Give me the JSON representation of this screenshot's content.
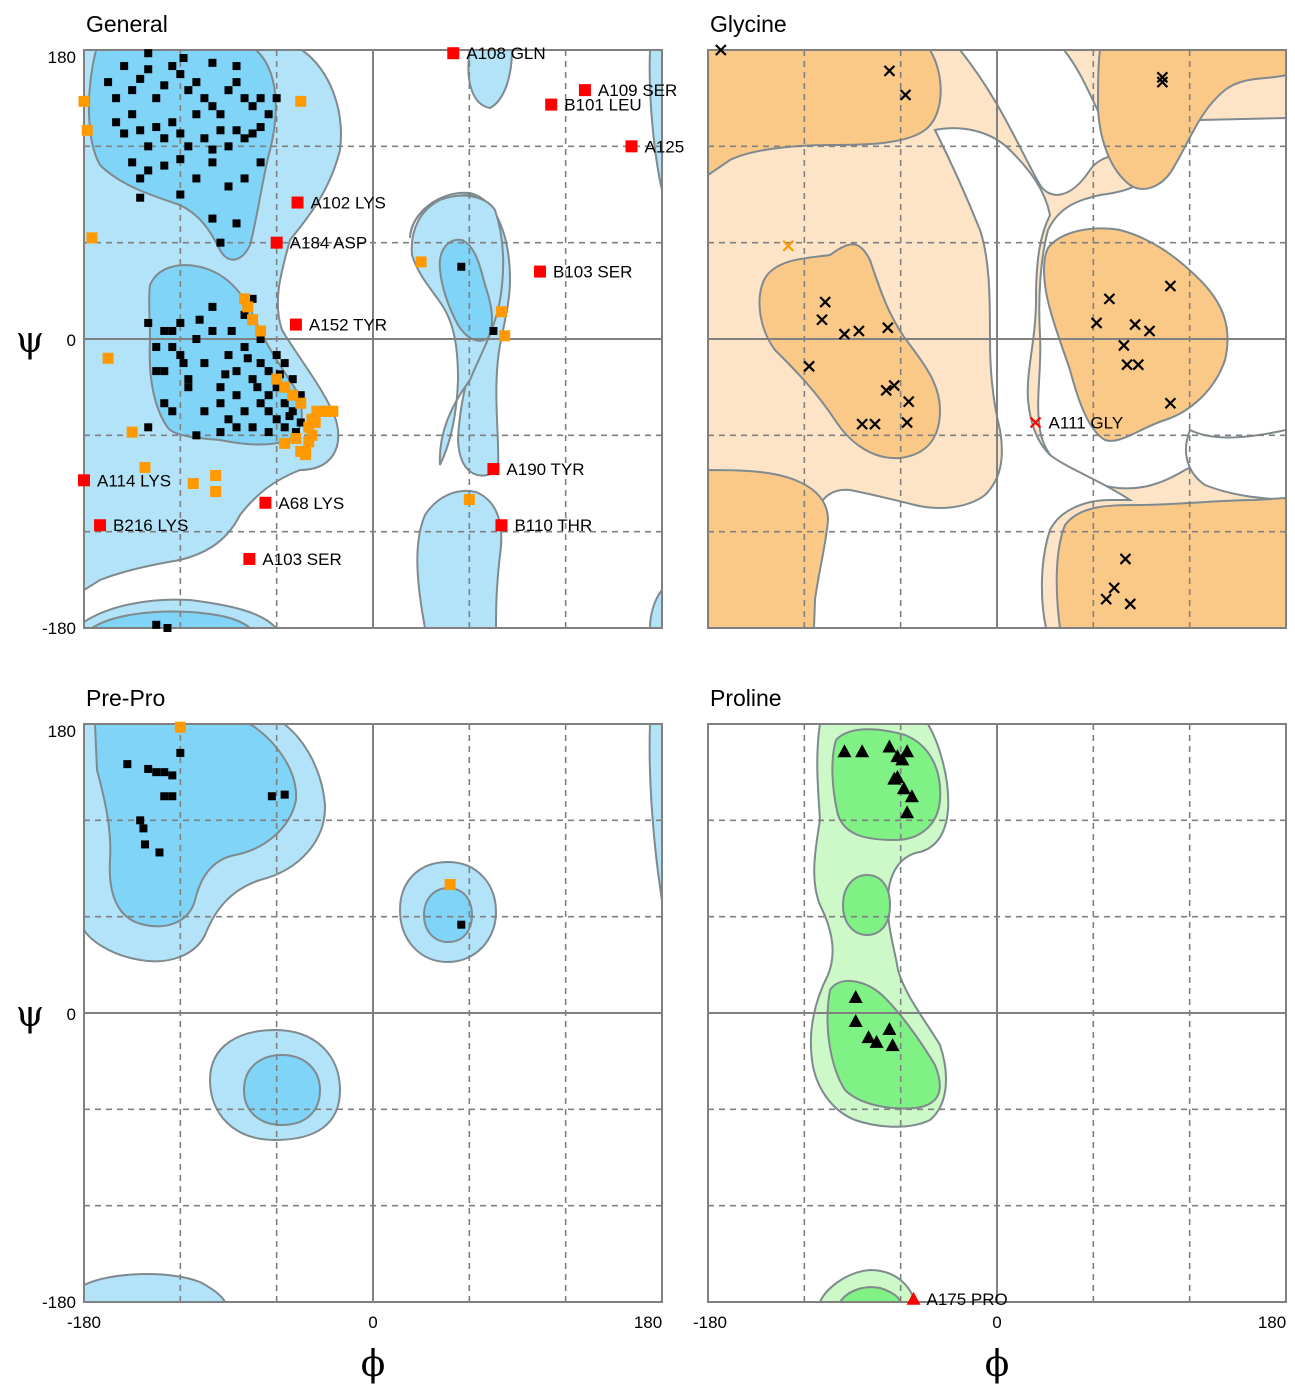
{
  "colors": {
    "general_outer": "#b3e3f8",
    "general_inner": "#7fd4f8",
    "glycine_outer": "#fde4c6",
    "glycine_inner": "#fbc987",
    "proline_outer": "#cdf8c8",
    "proline_inner": "#80f184",
    "contour_stroke": "#7f8a8f",
    "grid": "#808080",
    "point_favoured": "#000000",
    "point_allowed": "#ff9900",
    "point_outlier": "#ff0000"
  },
  "axes": {
    "x_symbol": "ϕ",
    "y_symbol": "ψ",
    "range": [
      -180,
      180
    ],
    "tick_labels": [
      "-180",
      "0",
      "180"
    ],
    "y_tick_labels": [
      "180",
      "0",
      "-180"
    ],
    "dashed_grid": [
      -120,
      -60,
      60,
      120
    ],
    "solid_grid": [
      0
    ]
  },
  "chart_data": [
    {
      "type": "scatter",
      "title": "General",
      "marker": "square",
      "favoured_points": [
        [
          -165,
          160
        ],
        [
          -160,
          150
        ],
        [
          -155,
          170
        ],
        [
          -150,
          155
        ],
        [
          -145,
          162
        ],
        [
          -140,
          168
        ],
        [
          -135,
          150
        ],
        [
          -130,
          158
        ],
        [
          -125,
          170
        ],
        [
          -120,
          165
        ],
        [
          -115,
          155
        ],
        [
          -110,
          160
        ],
        [
          -105,
          150
        ],
        [
          -100,
          145
        ],
        [
          -95,
          140
        ],
        [
          -90,
          155
        ],
        [
          -85,
          160
        ],
        [
          -80,
          150
        ],
        [
          -75,
          145
        ],
        [
          -70,
          150
        ],
        [
          -160,
          135
        ],
        [
          -155,
          128
        ],
        [
          -150,
          140
        ],
        [
          -145,
          130
        ],
        [
          -140,
          120
        ],
        [
          -135,
          132
        ],
        [
          -130,
          125
        ],
        [
          -125,
          135
        ],
        [
          -120,
          128
        ],
        [
          -115,
          120
        ],
        [
          -110,
          140
        ],
        [
          -105,
          125
        ],
        [
          -100,
          118
        ],
        [
          -95,
          130
        ],
        [
          -90,
          120
        ],
        [
          -85,
          130
        ],
        [
          -80,
          125
        ],
        [
          -75,
          128
        ],
        [
          -70,
          132
        ],
        [
          -65,
          140
        ],
        [
          -150,
          110
        ],
        [
          -145,
          100
        ],
        [
          -140,
          105
        ],
        [
          -130,
          108
        ],
        [
          -120,
          112
        ],
        [
          -110,
          100
        ],
        [
          -100,
          110
        ],
        [
          -90,
          95
        ],
        [
          -80,
          100
        ],
        [
          -70,
          110
        ],
        [
          -140,
          178
        ],
        [
          -118,
          175
        ],
        [
          -100,
          172
        ],
        [
          -85,
          170
        ],
        [
          -145,
          88
        ],
        [
          -120,
          90
        ],
        [
          -100,
          75
        ],
        [
          -85,
          72
        ],
        [
          -95,
          60
        ],
        [
          -60,
          150
        ],
        [
          -140,
          10
        ],
        [
          -135,
          -5
        ],
        [
          -130,
          -20
        ],
        [
          -125,
          5
        ],
        [
          -120,
          -10
        ],
        [
          -115,
          -25
        ],
        [
          -110,
          0
        ],
        [
          -105,
          -15
        ],
        [
          -100,
          5
        ],
        [
          -95,
          -30
        ],
        [
          -90,
          -10
        ],
        [
          -85,
          -20
        ],
        [
          -80,
          -5
        ],
        [
          -75,
          -25
        ],
        [
          -70,
          -15
        ],
        [
          -65,
          -35
        ],
        [
          -60,
          -30
        ],
        [
          -55,
          -40
        ],
        [
          -50,
          -25
        ],
        [
          -45,
          -35
        ],
        [
          -100,
          20
        ],
        [
          -95,
          -40
        ],
        [
          -90,
          -50
        ],
        [
          -85,
          -35
        ],
        [
          -80,
          -45
        ],
        [
          -75,
          -55
        ],
        [
          -70,
          -40
        ],
        [
          -65,
          -45
        ],
        [
          -60,
          -50
        ],
        [
          -55,
          -55
        ],
        [
          -120,
          10
        ],
        [
          -115,
          -30
        ],
        [
          -105,
          -45
        ],
        [
          -80,
          15
        ],
        [
          -75,
          25
        ],
        [
          -70,
          0
        ],
        [
          -65,
          -20
        ],
        [
          -60,
          -10
        ],
        [
          -55,
          -15
        ],
        [
          -50,
          -45
        ],
        [
          -135,
          -20
        ],
        [
          -130,
          -40
        ],
        [
          -125,
          -45
        ],
        [
          -110,
          -60
        ],
        [
          -95,
          -58
        ],
        [
          -85,
          -55
        ],
        [
          -65,
          -58
        ],
        [
          -52,
          -48
        ],
        [
          -48,
          -58
        ],
        [
          -45,
          -52
        ],
        [
          -140,
          -55
        ],
        [
          -130,
          5
        ],
        [
          -125,
          -5
        ],
        [
          -118,
          -15
        ],
        [
          -108,
          12
        ],
        [
          -92,
          -22
        ],
        [
          -88,
          5
        ],
        [
          -78,
          -12
        ],
        [
          -72,
          -30
        ],
        [
          -58,
          -22
        ],
        [
          -135,
          -178
        ],
        [
          -128,
          -180
        ],
        [
          55,
          45
        ],
        [
          75,
          5
        ]
      ],
      "allowed_points": [
        [
          -180,
          148
        ],
        [
          -178,
          130
        ],
        [
          -175,
          63
        ],
        [
          -80,
          25
        ],
        [
          -78,
          20
        ],
        [
          -75,
          12
        ],
        [
          -70,
          5
        ],
        [
          -165,
          -12
        ],
        [
          -150,
          -58
        ],
        [
          -142,
          -80
        ],
        [
          -112,
          -90
        ],
        [
          -98,
          -85
        ],
        [
          -98,
          -95
        ],
        [
          -48,
          -62
        ],
        [
          -55,
          -65
        ],
        [
          -42,
          -72
        ],
        [
          -40,
          -55
        ],
        [
          -38,
          -50
        ],
        [
          -35,
          -45
        ],
        [
          -30,
          -45
        ],
        [
          -28,
          -45
        ],
        [
          -45,
          -70
        ],
        [
          -42,
          -70
        ],
        [
          -40,
          -64
        ],
        [
          -38,
          -60
        ],
        [
          -36,
          -52
        ],
        [
          -60,
          -25
        ],
        [
          -55,
          -30
        ],
        [
          -50,
          -35
        ],
        [
          -45,
          -40
        ],
        [
          -28,
          -45
        ],
        [
          -45,
          148
        ],
        [
          -25,
          -45
        ],
        [
          30,
          48
        ],
        [
          80,
          17
        ],
        [
          82,
          2
        ],
        [
          60,
          -100
        ]
      ],
      "outliers": [
        {
          "label": "A108  GLN",
          "phi": 50,
          "psi": 178
        },
        {
          "label": "A109  SER",
          "phi": 132,
          "psi": 155
        },
        {
          "label": "B101  LEU",
          "phi": 111,
          "psi": 146
        },
        {
          "label": "A125",
          "phi": 161,
          "psi": 120
        },
        {
          "label": "A102  LYS",
          "phi": -47,
          "psi": 85
        },
        {
          "label": "A184  ASP",
          "phi": -60,
          "psi": 60
        },
        {
          "label": "B103  SER",
          "phi": 104,
          "psi": 42
        },
        {
          "label": "A152  TYR",
          "phi": -48,
          "psi": 9
        },
        {
          "label": "A190  TYR",
          "phi": 75,
          "psi": -81
        },
        {
          "label": "A114  LYS",
          "phi": -180,
          "psi": -88
        },
        {
          "label": "A68  LYS",
          "phi": -67,
          "psi": -102
        },
        {
          "label": "B216  LYS",
          "phi": -170,
          "psi": -116
        },
        {
          "label": "B110  THR",
          "phi": 80,
          "psi": -116
        },
        {
          "label": "A103  SER",
          "phi": -77,
          "psi": -137
        }
      ]
    },
    {
      "type": "scatter",
      "title": "Glycine",
      "marker": "cross",
      "favoured_points": [
        [
          -172,
          180
        ],
        [
          -67,
          167
        ],
        [
          -57,
          152
        ],
        [
          103,
          163
        ],
        [
          103,
          160
        ],
        [
          -107,
          23
        ],
        [
          -109,
          12
        ],
        [
          -95,
          3
        ],
        [
          -86,
          5
        ],
        [
          -68,
          7
        ],
        [
          -117,
          -17
        ],
        [
          -69,
          -32
        ],
        [
          -64,
          -29
        ],
        [
          -55,
          -39
        ],
        [
          -84,
          -53
        ],
        [
          -76,
          -53
        ],
        [
          -56,
          -52
        ],
        [
          62,
          10
        ],
        [
          70,
          25
        ],
        [
          86,
          9
        ],
        [
          95,
          5
        ],
        [
          79,
          -4
        ],
        [
          81,
          -16
        ],
        [
          88,
          -16
        ],
        [
          108,
          -40
        ],
        [
          108,
          33
        ],
        [
          80,
          -137
        ],
        [
          73,
          -155
        ],
        [
          68,
          -162
        ],
        [
          83,
          -165
        ]
      ],
      "allowed_points": [
        [
          -130,
          58
        ]
      ],
      "outliers": [
        {
          "label": "A111  GLY",
          "phi": 24,
          "psi": -52
        }
      ]
    },
    {
      "type": "scatter",
      "title": "Pre-Pro",
      "marker": "square",
      "favoured_points": [
        [
          -153,
          155
        ],
        [
          -140,
          152
        ],
        [
          -135,
          150
        ],
        [
          -130,
          150
        ],
        [
          -125,
          148
        ],
        [
          -130,
          135
        ],
        [
          -125,
          135
        ],
        [
          -120,
          162
        ],
        [
          -63,
          135
        ],
        [
          -55,
          136
        ],
        [
          -145,
          120
        ],
        [
          -143,
          115
        ],
        [
          -142,
          105
        ],
        [
          -133,
          100
        ],
        [
          55,
          55
        ]
      ],
      "allowed_points": [
        [
          -120,
          178
        ],
        [
          48,
          80
        ]
      ],
      "outliers": []
    },
    {
      "type": "scatter",
      "title": "Proline",
      "marker": "triangle",
      "favoured_points": [
        [
          -95,
          163
        ],
        [
          -84,
          163
        ],
        [
          -67,
          166
        ],
        [
          -62,
          160
        ],
        [
          -59,
          158
        ],
        [
          -56,
          163
        ],
        [
          -64,
          146
        ],
        [
          -62,
          147
        ],
        [
          -58,
          140
        ],
        [
          -53,
          135
        ],
        [
          -56,
          125
        ],
        [
          -88,
          10
        ],
        [
          -88,
          -5
        ],
        [
          -80,
          -15
        ],
        [
          -75,
          -18
        ],
        [
          -65,
          -20
        ],
        [
          -67,
          -10
        ]
      ],
      "allowed_points": [],
      "outliers": [
        {
          "label": "A175  PRO",
          "phi": -52,
          "psi": -178
        }
      ]
    }
  ]
}
